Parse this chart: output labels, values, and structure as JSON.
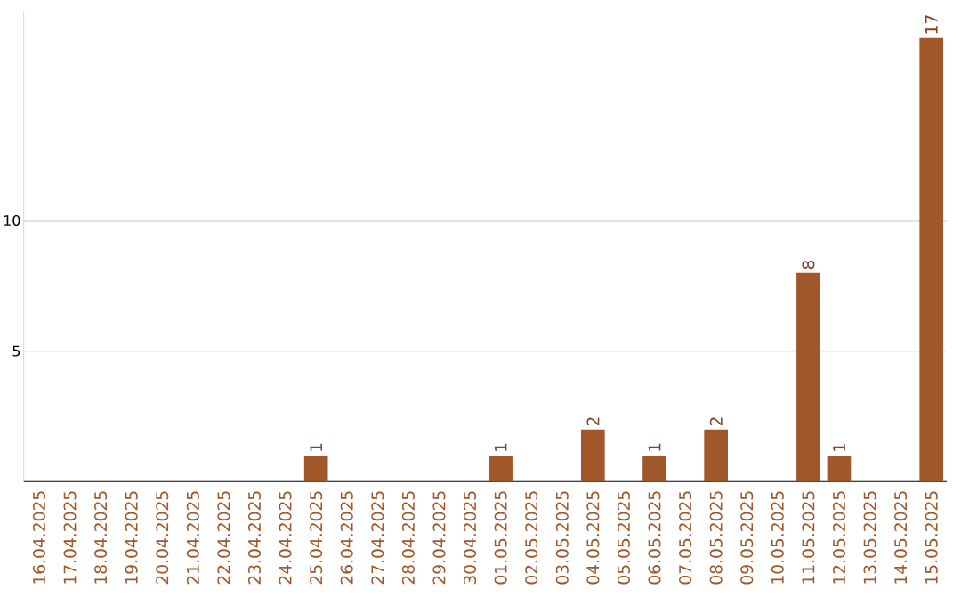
{
  "chart_data": {
    "type": "bar",
    "categories": [
      "16.04.2025",
      "17.04.2025",
      "18.04.2025",
      "19.04.2025",
      "20.04.2025",
      "21.04.2025",
      "22.04.2025",
      "23.04.2025",
      "24.04.2025",
      "25.04.2025",
      "26.04.2025",
      "27.04.2025",
      "28.04.2025",
      "29.04.2025",
      "30.04.2025",
      "01.05.2025",
      "02.05.2025",
      "03.05.2025",
      "04.05.2025",
      "05.05.2025",
      "06.05.2025",
      "07.05.2025",
      "08.05.2025",
      "09.05.2025",
      "10.05.2025",
      "11.05.2025",
      "12.05.2025",
      "13.05.2025",
      "14.05.2025",
      "15.05.2025"
    ],
    "values": [
      0,
      0,
      0,
      0,
      0,
      0,
      0,
      0,
      0,
      1,
      0,
      0,
      0,
      0,
      0,
      1,
      0,
      0,
      2,
      0,
      1,
      0,
      2,
      0,
      0,
      8,
      1,
      0,
      0,
      17
    ],
    "value_labels": [
      null,
      null,
      null,
      null,
      null,
      null,
      null,
      null,
      null,
      "1",
      null,
      null,
      null,
      null,
      null,
      "1",
      null,
      null,
      "2",
      null,
      "1",
      null,
      "2",
      null,
      null,
      "8",
      "1",
      null,
      null,
      "17"
    ],
    "color": "#a0582b",
    "ylim": [
      0,
      18
    ],
    "yticks": [
      {
        "value": 5,
        "label": "5"
      },
      {
        "value": 10,
        "label": "10"
      }
    ],
    "grid": "y"
  }
}
